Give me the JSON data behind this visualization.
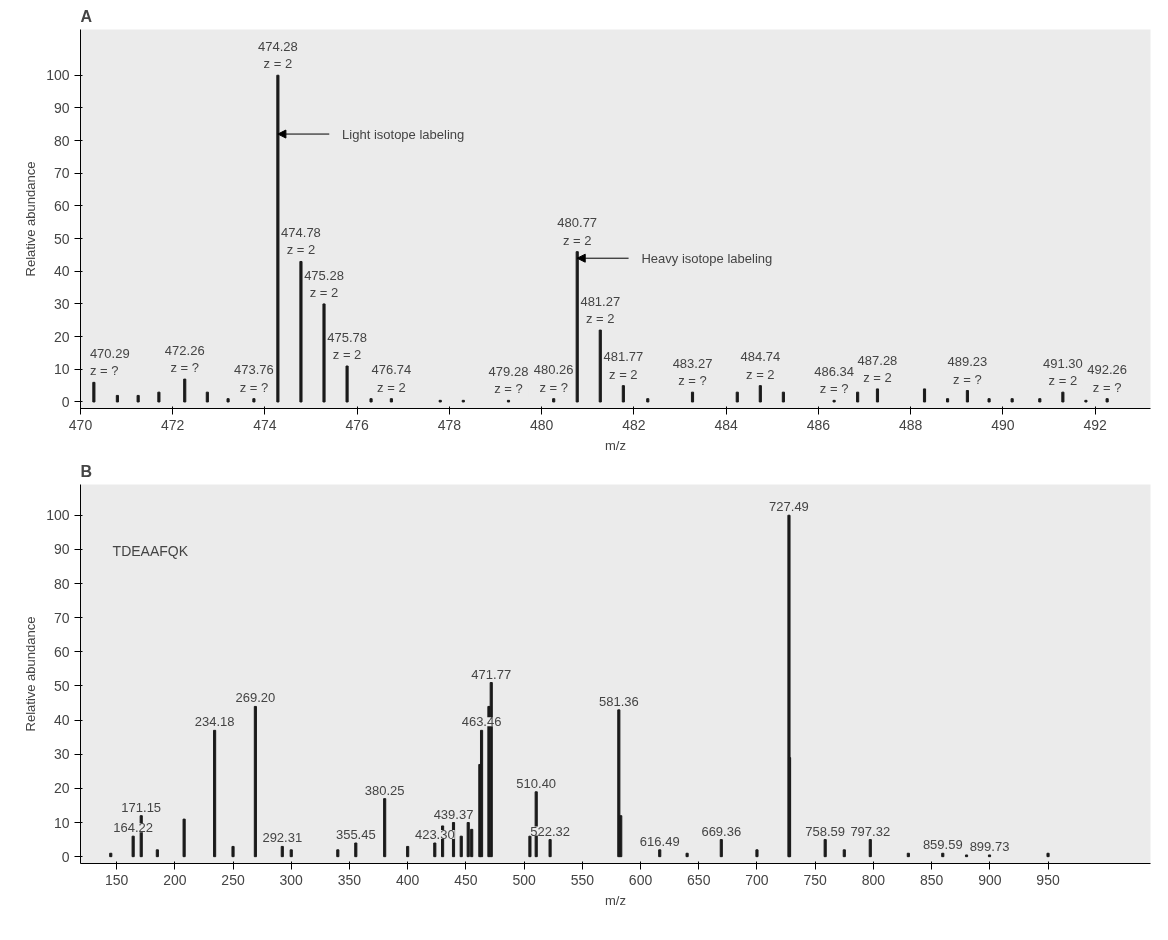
{
  "chart_data": [
    {
      "type": "bar",
      "title": "A",
      "xlabel": "m/z",
      "ylabel": "Relative abundance",
      "color": "#1a1a1a",
      "grid": false,
      "xlim": [
        470,
        493.2
      ],
      "ylim": [
        -2,
        114
      ],
      "xticks": [
        470,
        472,
        474,
        476,
        478,
        480,
        482,
        484,
        486,
        488,
        490,
        492
      ],
      "yticks": [
        0,
        10,
        20,
        30,
        40,
        50,
        60,
        70,
        80,
        90,
        100
      ],
      "x": [
        470.29,
        470.8,
        471.25,
        471.7,
        472.26,
        472.75,
        473.2,
        473.76,
        474.28,
        474.78,
        475.28,
        475.78,
        476.3,
        476.74,
        477.8,
        478.3,
        479.28,
        480.26,
        480.77,
        481.27,
        481.77,
        482.3,
        483.27,
        484.24,
        484.74,
        485.24,
        486.34,
        486.85,
        487.28,
        488.3,
        488.8,
        489.23,
        489.7,
        490.2,
        490.8,
        491.3,
        491.8,
        492.26
      ],
      "values": [
        6,
        2,
        2,
        3,
        7,
        3,
        1,
        1,
        100,
        43,
        30,
        11,
        1,
        1,
        0.5,
        0.5,
        0.5,
        1,
        46,
        22,
        5,
        1,
        3,
        3,
        5,
        3,
        0.5,
        3,
        4,
        4,
        1,
        3.5,
        1,
        1,
        1,
        3,
        0.5,
        1
      ],
      "annotations": [
        {
          "text": "470.29\nz = ?",
          "x": 470.29,
          "y": 6
        },
        {
          "text": "472.26\nz = ?",
          "x": 472.26,
          "y": 7
        },
        {
          "text": "473.76\nz = ?",
          "x": 473.76,
          "y": 1
        },
        {
          "text": "474.28\nz = 2",
          "x": 474.28,
          "y": 100
        },
        {
          "text": "474.78\nz = 2",
          "x": 474.78,
          "y": 43
        },
        {
          "text": "475.28\nz = 2",
          "x": 475.28,
          "y": 30
        },
        {
          "text": "475.78\nz = 2",
          "x": 475.78,
          "y": 11
        },
        {
          "text": "476.74\nz = 2",
          "x": 476.74,
          "y": 1
        },
        {
          "text": "479.28\nz = ?",
          "x": 479.28,
          "y": 0.5
        },
        {
          "text": "480.26\nz = ?",
          "x": 480.26,
          "y": 1
        },
        {
          "text": "480.77\nz = 2",
          "x": 480.77,
          "y": 46
        },
        {
          "text": "481.27\nz = 2",
          "x": 481.27,
          "y": 22
        },
        {
          "text": "481.77\nz = 2",
          "x": 481.77,
          "y": 5
        },
        {
          "text": "483.27\nz = ?",
          "x": 483.27,
          "y": 3
        },
        {
          "text": "484.74\nz = 2",
          "x": 484.74,
          "y": 5
        },
        {
          "text": "486.34\nz = ?",
          "x": 486.34,
          "y": 0.5
        },
        {
          "text": "487.28\nz = 2",
          "x": 487.28,
          "y": 4
        },
        {
          "text": "489.23\nz = ?",
          "x": 489.23,
          "y": 3.5
        },
        {
          "text": "491.30\nz = 2",
          "x": 491.3,
          "y": 3
        },
        {
          "text": "492.26\nz = ?",
          "x": 492.26,
          "y": 1
        },
        {
          "text": "Light isotope labeling",
          "x": 474.28,
          "y": 82
        },
        {
          "text": "Heavy isotope labeling",
          "x": 480.77,
          "y": 44
        }
      ]
    },
    {
      "type": "bar",
      "title": "B",
      "xlabel": "m/z",
      "ylabel": "Relative abundance",
      "color": "#1a1a1a",
      "grid": false,
      "xlim": [
        119,
        1038
      ],
      "ylim": [
        -2,
        109
      ],
      "xticks": [
        150,
        200,
        250,
        300,
        350,
        400,
        450,
        500,
        550,
        600,
        650,
        700,
        750,
        800,
        850,
        900,
        950
      ],
      "yticks": [
        0,
        10,
        20,
        30,
        40,
        50,
        60,
        70,
        80,
        90,
        100
      ],
      "x": [
        145,
        164.22,
        171.15,
        185,
        208,
        234.18,
        250,
        269.2,
        292.31,
        300,
        340,
        355.45,
        380.25,
        400,
        423.3,
        430,
        439.37,
        446,
        452,
        455,
        462,
        463.46,
        469.8,
        471.77,
        505,
        510.4,
        522.32,
        581.36,
        583,
        616.49,
        640,
        669.36,
        700,
        727.49,
        728,
        758.59,
        775,
        797.32,
        830,
        859.59,
        880,
        899.73,
        950
      ],
      "values": [
        1,
        6,
        12,
        2,
        11,
        37,
        3,
        44,
        3,
        2,
        2,
        4,
        17,
        3,
        4,
        9,
        10,
        6,
        10,
        8,
        27,
        37,
        44,
        51,
        6,
        19,
        5,
        43,
        12,
        2,
        1,
        5,
        2,
        100,
        29,
        5,
        2,
        5,
        1,
        1,
        0.5,
        0.5,
        1
      ],
      "annotations": [
        {
          "text": "164.22",
          "x": 164.22,
          "y": 6
        },
        {
          "text": "171.15",
          "x": 171.15,
          "y": 12
        },
        {
          "text": "234.18",
          "x": 234.18,
          "y": 37
        },
        {
          "text": "269.20",
          "x": 269.2,
          "y": 44
        },
        {
          "text": "292.31",
          "x": 292.31,
          "y": 3
        },
        {
          "text": "355.45",
          "x": 355.45,
          "y": 4
        },
        {
          "text": "380.25",
          "x": 380.25,
          "y": 17
        },
        {
          "text": "423.30",
          "x": 423.3,
          "y": 4
        },
        {
          "text": "439.37",
          "x": 439.37,
          "y": 10
        },
        {
          "text": "463.46",
          "x": 463.46,
          "y": 37
        },
        {
          "text": "471.77",
          "x": 471.77,
          "y": 51
        },
        {
          "text": "510.40",
          "x": 510.4,
          "y": 19
        },
        {
          "text": "522.32",
          "x": 522.32,
          "y": 5
        },
        {
          "text": "581.36",
          "x": 581.36,
          "y": 43
        },
        {
          "text": "616.49",
          "x": 616.49,
          "y": 2
        },
        {
          "text": "669.36",
          "x": 669.36,
          "y": 5
        },
        {
          "text": "727.49",
          "x": 727.49,
          "y": 100
        },
        {
          "text": "758.59",
          "x": 758.59,
          "y": 5
        },
        {
          "text": "797.32",
          "x": 797.32,
          "y": 5
        },
        {
          "text": "859.59",
          "x": 859.59,
          "y": 1
        },
        {
          "text": "899.73",
          "x": 899.73,
          "y": 0.5
        },
        "TDEAAFQK"
      ]
    }
  ]
}
